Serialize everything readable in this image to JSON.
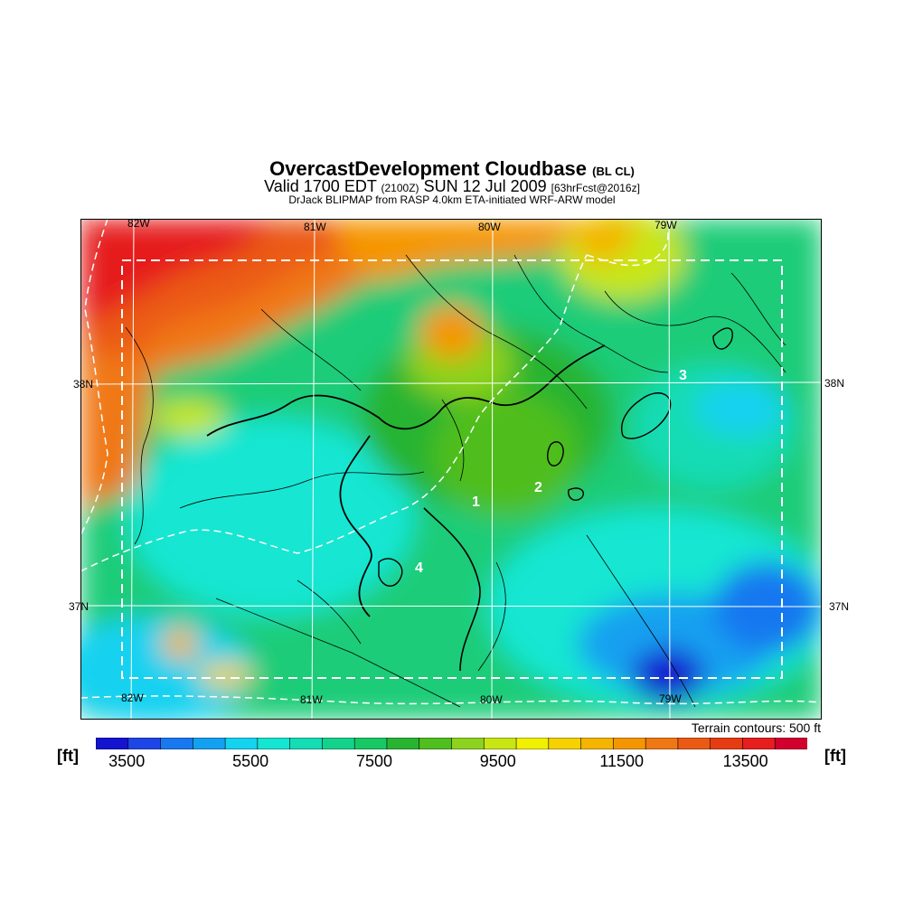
{
  "header": {
    "title": "OvercastDevelopment Cloudbase",
    "title_suffix": "(BL CL)",
    "valid_prefix": "Valid 1700 EDT",
    "valid_utc": "(2100Z)",
    "valid_date": "SUN 12 Jul 2009",
    "forecast_tag": "[63hrFcst@2016z]",
    "credit": "DrJack BLIPMAP from RASP 4.0km ETA-initiated WRF-ARW model"
  },
  "map": {
    "lon_labels_top": [
      "82W",
      "81W",
      "80W",
      "79W"
    ],
    "lon_labels_bottom": [
      "82W",
      "81W",
      "80W",
      "79W"
    ],
    "lat_labels_left": [
      "38N",
      "37N"
    ],
    "lat_labels_right": [
      "38N",
      "37N"
    ],
    "site_markers": [
      "1",
      "2",
      "3",
      "4"
    ],
    "terrain_note": "Terrain contours: 500 ft"
  },
  "legend": {
    "unit_left": "[ft]",
    "unit_right": "[ft]",
    "tick_labels": [
      "3500",
      "5500",
      "7500",
      "9500",
      "11500",
      "13500"
    ],
    "colors": [
      "#1414d0",
      "#1e46e6",
      "#1878f0",
      "#14a0f0",
      "#14d2f0",
      "#14e6d2",
      "#14dcb4",
      "#14d28c",
      "#18c864",
      "#28b432",
      "#50be1e",
      "#8cd21e",
      "#c8e614",
      "#f0f000",
      "#f5d200",
      "#f5b400",
      "#f59600",
      "#f07814",
      "#eb5a14",
      "#e63c14",
      "#e61e1e",
      "#d2002d"
    ],
    "range": [
      3000,
      14500
    ]
  }
}
